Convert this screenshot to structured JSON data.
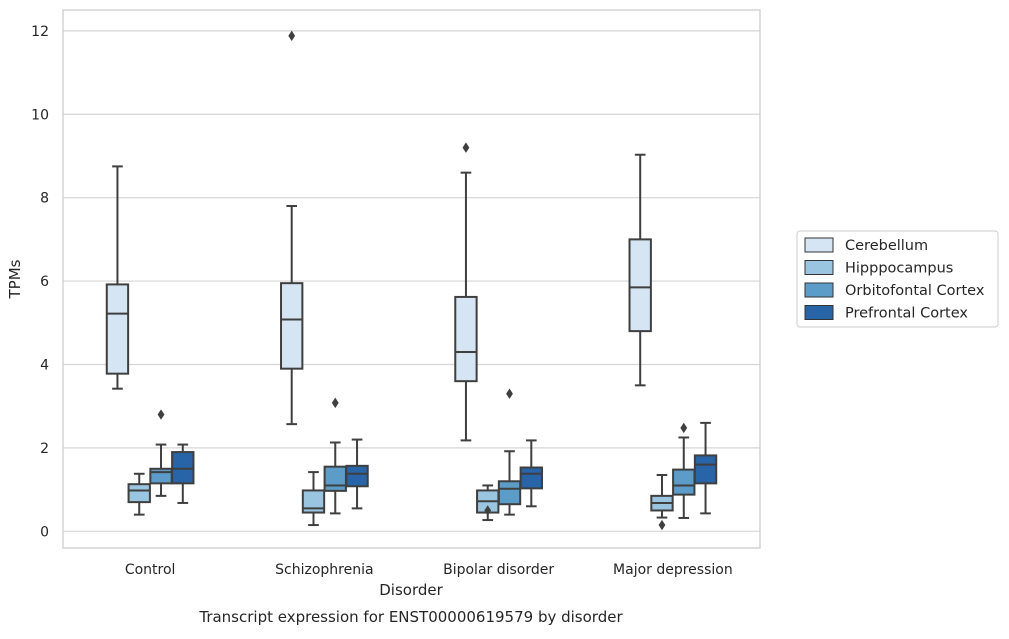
{
  "chart_data": {
    "type": "box",
    "title": "",
    "caption": "Transcript expression for ENST00000619579 by disorder",
    "xlabel": "Disorder",
    "ylabel": "TPMs",
    "categories": [
      "Control",
      "Schizophrenia",
      "Bipolar disorder",
      "Major depression"
    ],
    "y_ticks": [
      0,
      2,
      4,
      6,
      8,
      10,
      12
    ],
    "ylim": [
      -0.4,
      12.5
    ],
    "grid": "horizontal",
    "legend_position": "right",
    "series": [
      {
        "name": "Cerebellum",
        "color": "#d6e5f4",
        "boxes": [
          {
            "whisker_low": 3.42,
            "q1": 3.78,
            "median": 5.22,
            "q3": 5.92,
            "whisker_high": 8.75,
            "outliers": []
          },
          {
            "whisker_low": 2.57,
            "q1": 3.9,
            "median": 5.08,
            "q3": 5.95,
            "whisker_high": 7.8,
            "outliers": [
              11.88
            ]
          },
          {
            "whisker_low": 2.18,
            "q1": 3.6,
            "median": 4.3,
            "q3": 5.62,
            "whisker_high": 8.6,
            "outliers": [
              9.2
            ]
          },
          {
            "whisker_low": 3.5,
            "q1": 4.8,
            "median": 5.85,
            "q3": 7.0,
            "whisker_high": 9.03,
            "outliers": []
          }
        ]
      },
      {
        "name": "Hipppocampus",
        "color": "#9ac5e0",
        "boxes": [
          {
            "whisker_low": 0.4,
            "q1": 0.7,
            "median": 0.98,
            "q3": 1.13,
            "whisker_high": 1.38,
            "outliers": []
          },
          {
            "whisker_low": 0.15,
            "q1": 0.45,
            "median": 0.55,
            "q3": 0.98,
            "whisker_high": 1.42,
            "outliers": []
          },
          {
            "whisker_low": 0.27,
            "q1": 0.45,
            "median": 0.72,
            "q3": 0.98,
            "whisker_high": 1.1,
            "outliers": [
              0.5
            ]
          },
          {
            "whisker_low": 0.33,
            "q1": 0.5,
            "median": 0.68,
            "q3": 0.85,
            "whisker_high": 1.35,
            "outliers": [
              0.15
            ]
          }
        ]
      },
      {
        "name": "Orbitofontal Cortex",
        "color": "#5b9cc9",
        "boxes": [
          {
            "whisker_low": 0.85,
            "q1": 1.15,
            "median": 1.42,
            "q3": 1.5,
            "whisker_high": 2.08,
            "outliers": [
              2.8
            ]
          },
          {
            "whisker_low": 0.43,
            "q1": 0.97,
            "median": 1.1,
            "q3": 1.55,
            "whisker_high": 2.13,
            "outliers": [
              3.08
            ]
          },
          {
            "whisker_low": 0.4,
            "q1": 0.65,
            "median": 1.02,
            "q3": 1.2,
            "whisker_high": 1.92,
            "outliers": [
              3.3
            ]
          },
          {
            "whisker_low": 0.32,
            "q1": 0.88,
            "median": 1.1,
            "q3": 1.48,
            "whisker_high": 2.25,
            "outliers": [
              2.48
            ]
          }
        ]
      },
      {
        "name": "Prefrontal Cortex",
        "color": "#2764a8",
        "boxes": [
          {
            "whisker_low": 0.68,
            "q1": 1.15,
            "median": 1.5,
            "q3": 1.9,
            "whisker_high": 2.08,
            "outliers": []
          },
          {
            "whisker_low": 0.55,
            "q1": 1.08,
            "median": 1.38,
            "q3": 1.57,
            "whisker_high": 2.2,
            "outliers": []
          },
          {
            "whisker_low": 0.6,
            "q1": 1.03,
            "median": 1.38,
            "q3": 1.53,
            "whisker_high": 2.18,
            "outliers": []
          },
          {
            "whisker_low": 0.43,
            "q1": 1.15,
            "median": 1.6,
            "q3": 1.82,
            "whisker_high": 2.6,
            "outliers": []
          }
        ]
      }
    ]
  }
}
